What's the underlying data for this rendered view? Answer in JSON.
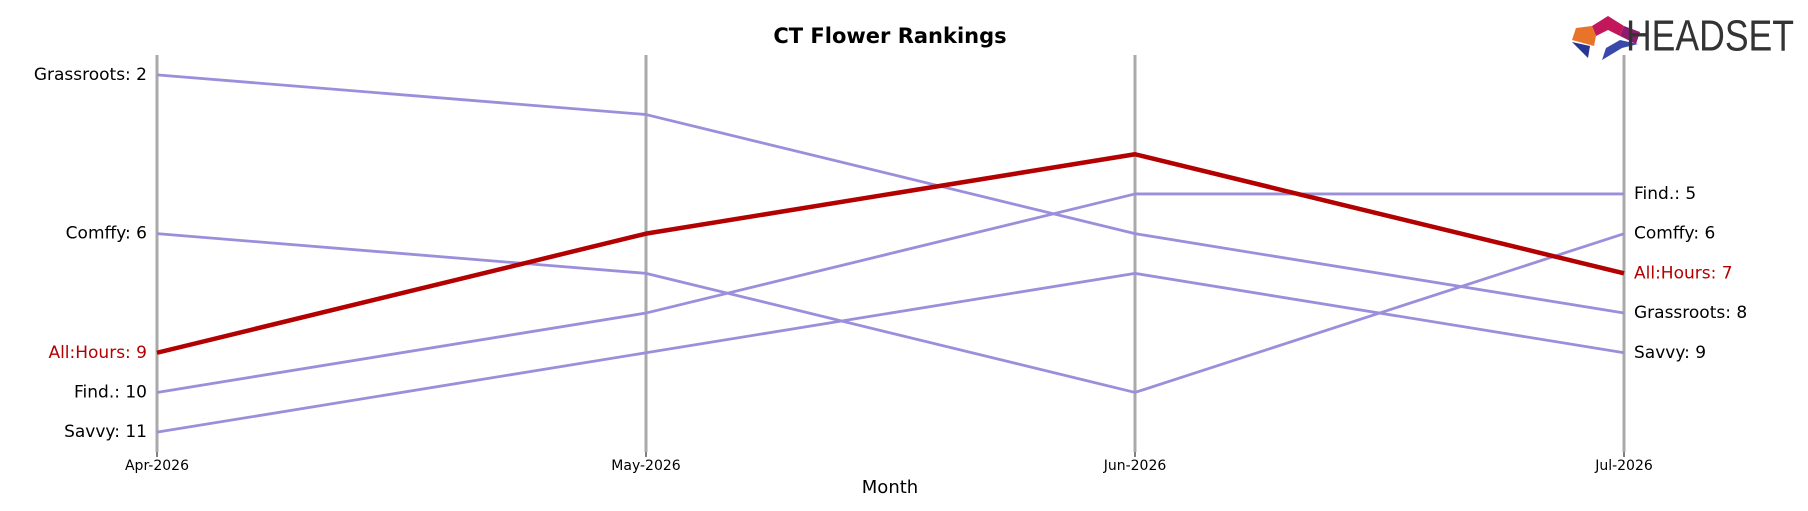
{
  "chart_data": {
    "type": "bump",
    "title": "CT Flower Rankings",
    "xlabel": "Month",
    "brand": "HEADSET",
    "categories": [
      "Apr-2026",
      "May-2026",
      "Jun-2026",
      "Jul-2026"
    ],
    "ylim": [
      1.5,
      11.5
    ],
    "y_inverted": true,
    "grid": true,
    "series": [
      {
        "name": "Grassroots",
        "color": "#9b8fdc",
        "values": [
          2,
          3,
          6,
          8
        ],
        "value_labels": [
          "Grassroots: 2",
          null,
          null,
          "Grassroots: 8"
        ]
      },
      {
        "name": "Comffy",
        "color": "#9b8fdc",
        "values": [
          6,
          7,
          10,
          6
        ],
        "value_labels": [
          "Comffy: 6",
          null,
          null,
          "Comffy: 6"
        ]
      },
      {
        "name": "Find.",
        "color": "#9b8fdc",
        "values": [
          10,
          8,
          5,
          5
        ],
        "value_labels": [
          "Find.: 10",
          null,
          null,
          "Find.: 5"
        ]
      },
      {
        "name": "Savvy",
        "color": "#9b8fdc",
        "values": [
          11,
          9,
          7,
          9
        ],
        "value_labels": [
          "Savvy: 11",
          null,
          null,
          "Savvy: 9"
        ]
      },
      {
        "name": "All:Hours",
        "color": "#b30000",
        "highlight": true,
        "values": [
          9,
          6,
          4,
          7
        ],
        "value_labels": [
          "All:Hours: 9",
          null,
          null,
          "All:Hours: 7"
        ]
      }
    ]
  }
}
